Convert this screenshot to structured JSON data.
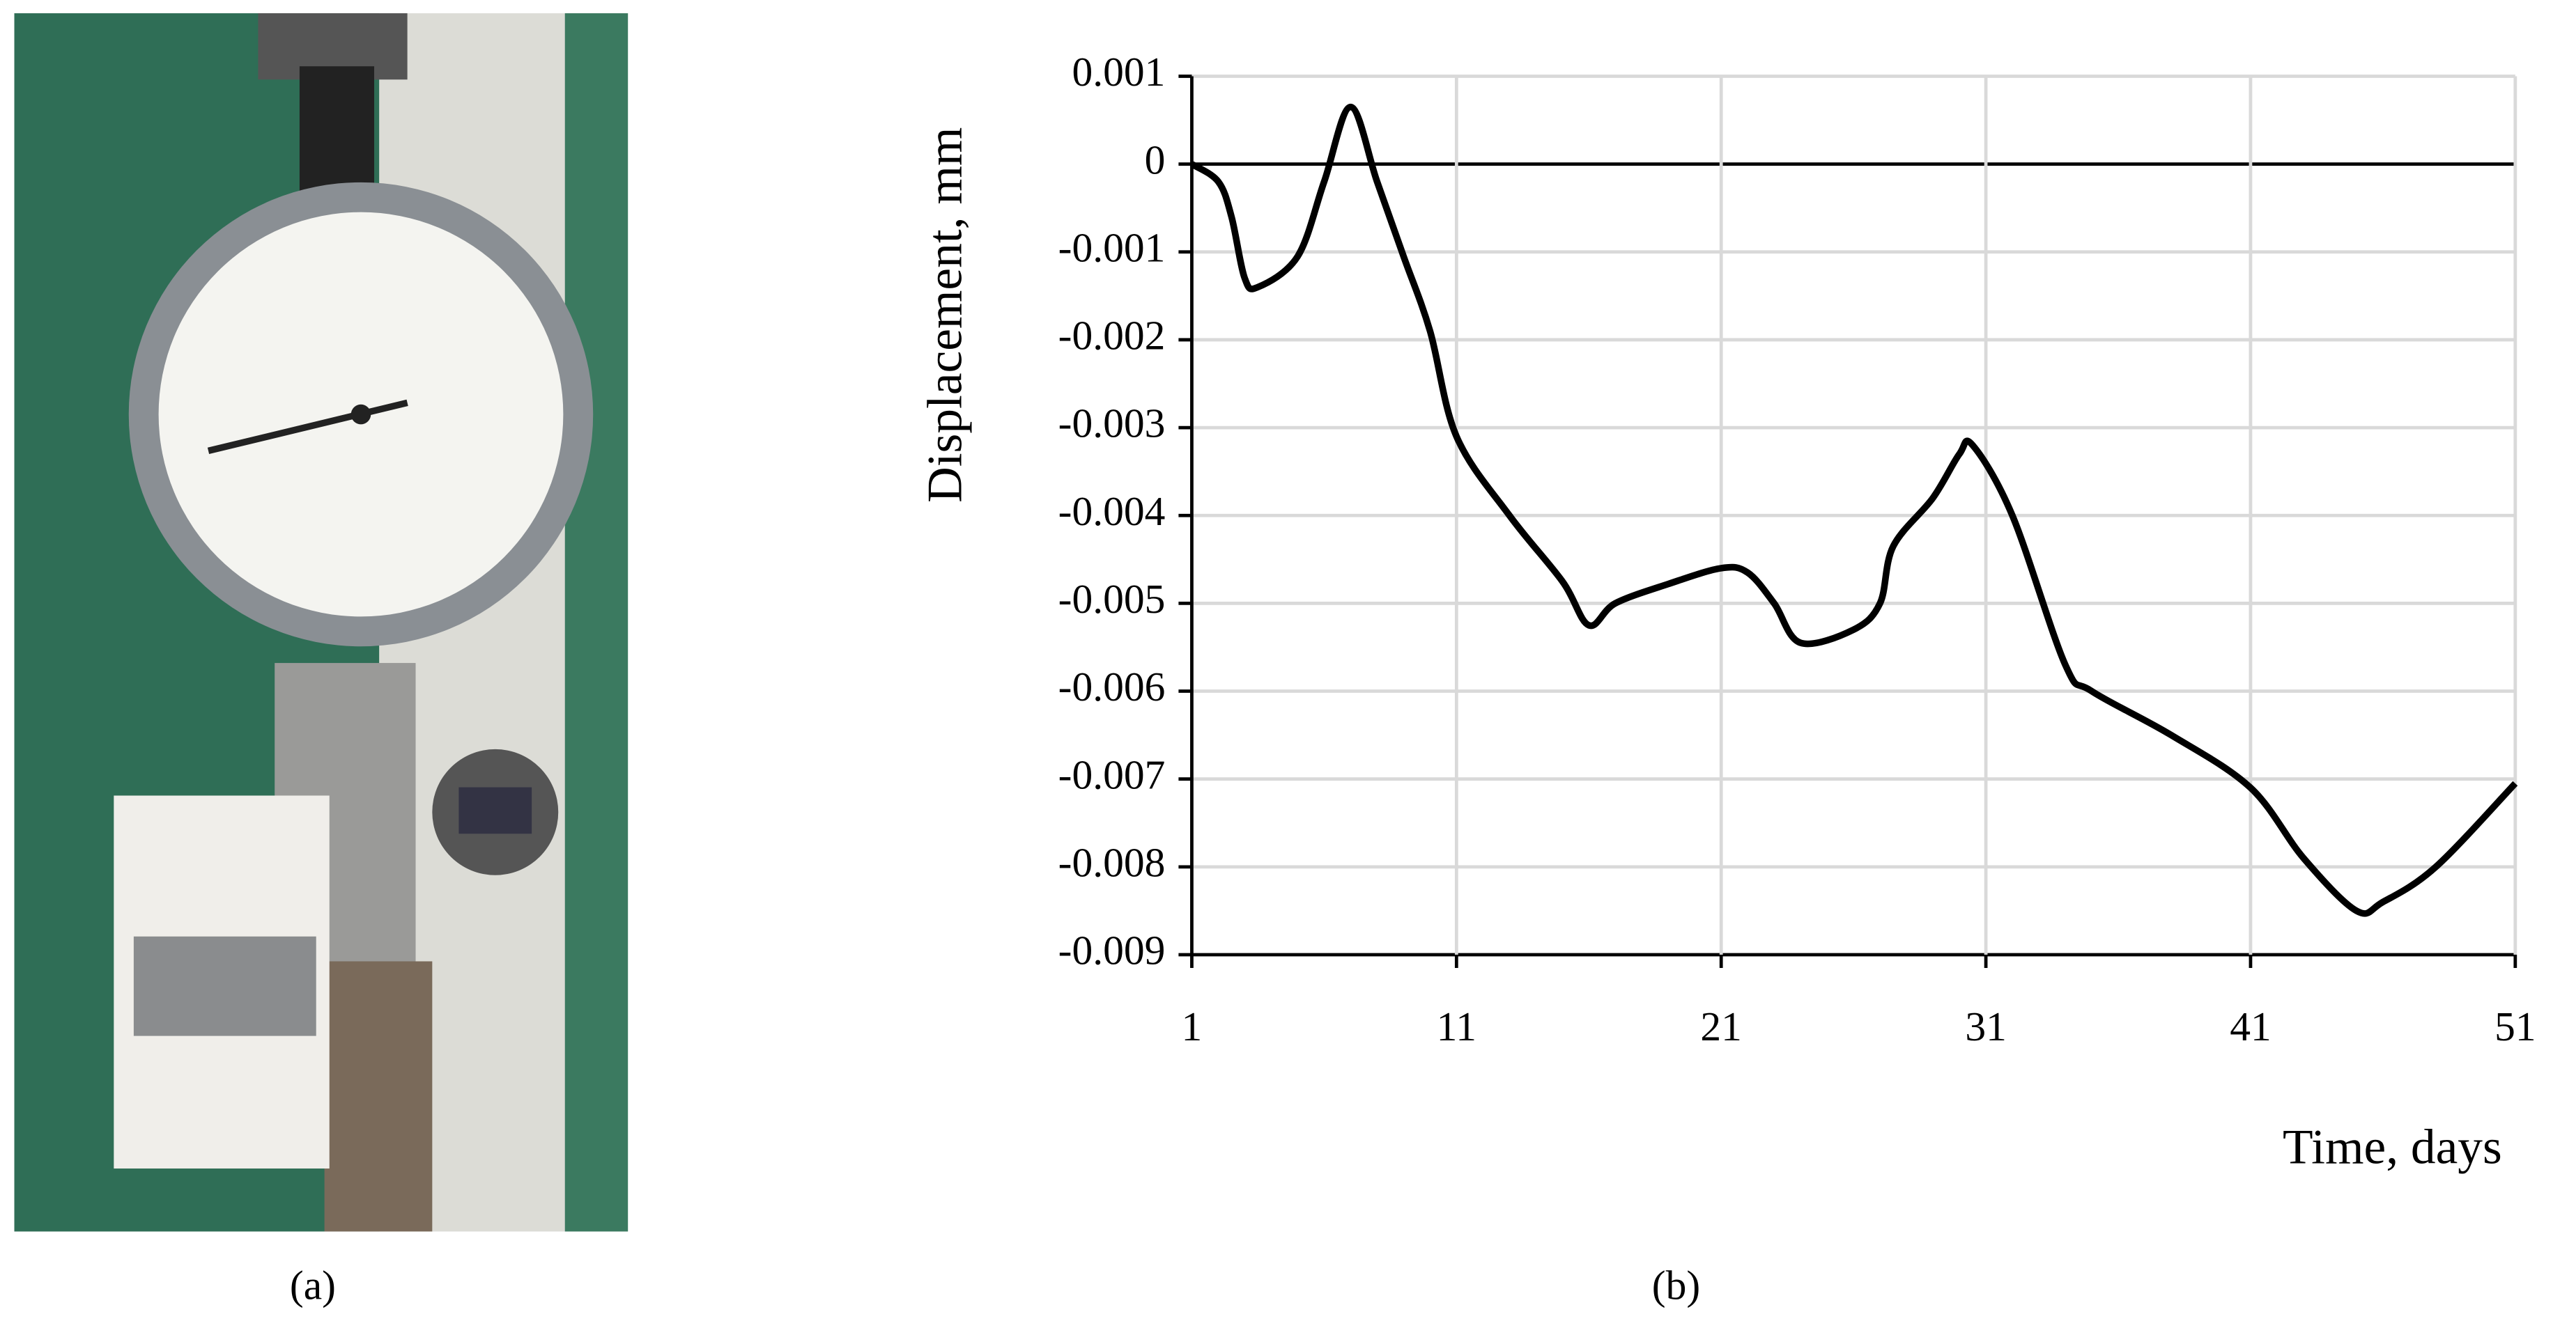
{
  "chart_data": {
    "type": "line",
    "x_label": "Time, days",
    "y_label": "Displacement, mm",
    "x": [
      1,
      2,
      2.5,
      3,
      3.5,
      5,
      6,
      7,
      8,
      9,
      10,
      11,
      13,
      15,
      16,
      17,
      19,
      21,
      22,
      23,
      24,
      26,
      27,
      27.5,
      29,
      30,
      30.5,
      32,
      34,
      35,
      38,
      41,
      43,
      45,
      46,
      48,
      51
    ],
    "series": [
      {
        "color": "#000000",
        "values": [
          0,
          -0.0002,
          -0.0006,
          -0.0013,
          -0.0014,
          -0.00105,
          -0.0002,
          0.00065,
          -0.0002,
          -0.00105,
          -0.0019,
          -0.0031,
          -0.004,
          -0.00475,
          -0.00525,
          -0.005,
          -0.00478,
          -0.0046,
          -0.00465,
          -0.005,
          -0.00545,
          -0.0053,
          -0.005,
          -0.00435,
          -0.0038,
          -0.0033,
          -0.0032,
          -0.004,
          -0.0057,
          -0.006,
          -0.0065,
          -0.0071,
          -0.0079,
          -0.0085,
          -0.0084,
          -0.008,
          -0.00705
        ]
      }
    ],
    "xlim": [
      1,
      51
    ],
    "xticks": [
      1,
      11,
      21,
      31,
      41,
      51
    ],
    "ylim": [
      -0.009,
      0.001
    ],
    "yticks": [
      0.001,
      0,
      -0.001,
      -0.002,
      -0.003,
      -0.004,
      -0.005,
      -0.006,
      -0.007,
      -0.008,
      -0.009
    ],
    "grid": true
  },
  "captions": [
    "(a)",
    "(b)"
  ]
}
